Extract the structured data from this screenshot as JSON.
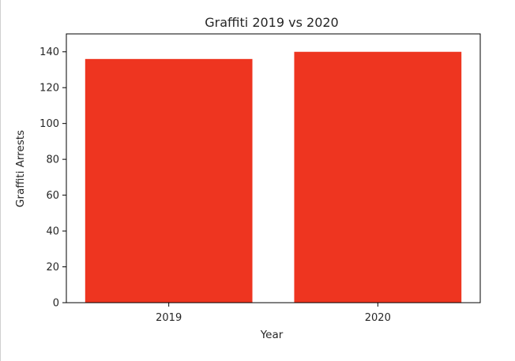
{
  "chart_data": {
    "type": "bar",
    "title": "Graffiti 2019 vs 2020",
    "xlabel": "Year",
    "ylabel": "Graffiti Arrests",
    "categories": [
      "2019",
      "2020"
    ],
    "values": [
      136,
      140
    ],
    "ylim": [
      0,
      150
    ],
    "yticks": [
      0,
      20,
      40,
      60,
      80,
      100,
      120,
      140
    ],
    "grid": false,
    "legend": "none",
    "bar_color": "#ee3520"
  }
}
